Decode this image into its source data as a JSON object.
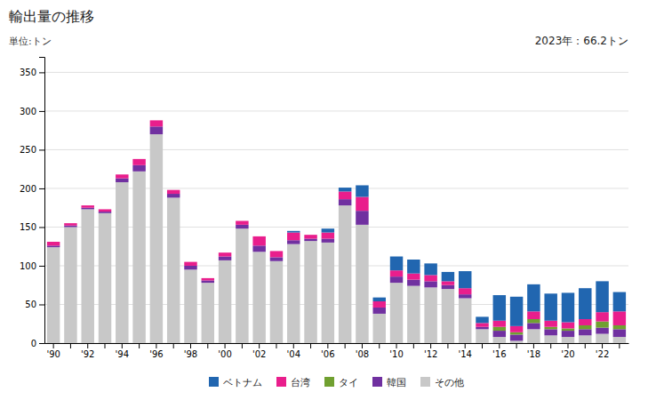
{
  "chart_data": {
    "type": "bar",
    "stacked": true,
    "title": "輸出量の推移",
    "y_label": "単位:トン",
    "annotations": [
      "2023年：66.2トン"
    ],
    "categories": [
      "'90",
      null,
      "'92",
      null,
      "'94",
      null,
      "'96",
      null,
      "'98",
      null,
      "'00",
      null,
      "'02",
      null,
      "'04",
      null,
      "'06",
      null,
      "'08",
      null,
      "'10",
      null,
      "'12",
      null,
      "'14",
      null,
      "'16",
      null,
      "'18",
      null,
      "'20",
      null,
      "'22",
      null
    ],
    "series": [
      {
        "name": "ベトナム",
        "color": "#2166b0",
        "values": [
          0,
          0,
          0,
          0,
          0,
          0,
          0,
          0,
          0,
          0,
          0,
          0,
          0,
          0,
          2,
          0,
          5,
          5,
          15,
          5,
          18,
          18,
          15,
          12,
          22,
          8,
          33,
          38,
          35,
          35,
          38,
          40,
          40,
          25
        ]
      },
      {
        "name": "台湾",
        "color": "#e91e8c",
        "values": [
          5,
          3,
          3,
          3,
          5,
          8,
          8,
          5,
          5,
          3,
          5,
          5,
          12,
          8,
          10,
          5,
          8,
          10,
          18,
          8,
          8,
          8,
          8,
          5,
          8,
          5,
          8,
          8,
          10,
          8,
          8,
          8,
          12,
          18
        ]
      },
      {
        "name": "タイ",
        "color": "#70a030",
        "values": [
          0,
          0,
          0,
          0,
          0,
          0,
          0,
          0,
          0,
          0,
          0,
          0,
          0,
          0,
          0,
          0,
          0,
          0,
          0,
          0,
          0,
          0,
          0,
          0,
          0,
          0,
          5,
          3,
          5,
          3,
          3,
          5,
          8,
          5
        ]
      },
      {
        "name": "韓国",
        "color": "#7030a0",
        "values": [
          2,
          2,
          2,
          2,
          5,
          8,
          10,
          5,
          5,
          3,
          5,
          5,
          8,
          5,
          5,
          3,
          5,
          8,
          18,
          8,
          8,
          8,
          8,
          5,
          5,
          3,
          8,
          8,
          8,
          8,
          8,
          8,
          8,
          10
        ]
      },
      {
        "name": "その他",
        "color": "#c8c8c8",
        "values": [
          124,
          150,
          173,
          168,
          208,
          222,
          270,
          188,
          95,
          78,
          107,
          148,
          118,
          106,
          128,
          132,
          130,
          178,
          153,
          38,
          78,
          74,
          72,
          70,
          58,
          18,
          8,
          3,
          18,
          10,
          8,
          10,
          12,
          8
        ]
      }
    ],
    "ylim": [
      0,
      370
    ],
    "yticks": [
      0,
      50,
      100,
      150,
      200,
      250,
      300,
      350
    ],
    "grid": true,
    "legend": "bottom"
  }
}
